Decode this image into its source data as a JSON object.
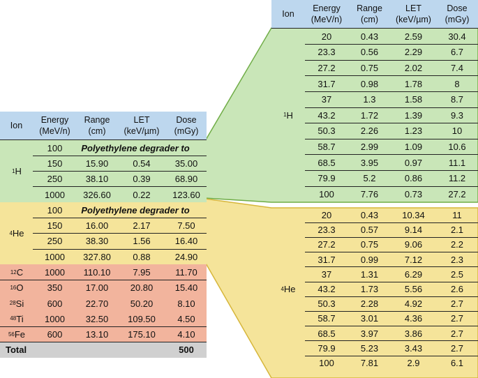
{
  "colors": {
    "header_blue": "#bdd7ee",
    "proton_green": "#c9e6b8",
    "helium_yellow": "#f5e49a",
    "heavy_salmon": "#f2b49d",
    "total_gray": "#d0d0d0",
    "green_outline": "#70ad47",
    "yellow_outline": "#d6b63a"
  },
  "left_table": {
    "headers": [
      {
        "l1": "Ion",
        "l2": ""
      },
      {
        "l1": "Energy",
        "l2": "(MeV/n)"
      },
      {
        "l1": "Range",
        "l2": "(cm)"
      },
      {
        "l1": "LET",
        "l2": "(keV/µm)"
      },
      {
        "l1": "Dose",
        "l2": "(mGy)"
      }
    ],
    "groups": [
      {
        "mass": "1",
        "symbol": "H",
        "color": "proton_green",
        "rows": [
          {
            "energy": "100",
            "note": "Polyethylene degrader to"
          },
          {
            "energy": "150",
            "range": "15.90",
            "let": "0.54",
            "dose": "35.00"
          },
          {
            "energy": "250",
            "range": "38.10",
            "let": "0.39",
            "dose": "68.90"
          },
          {
            "energy": "1000",
            "range": "326.60",
            "let": "0.22",
            "dose": "123.60"
          }
        ]
      },
      {
        "mass": "4",
        "symbol": "He",
        "color": "helium_yellow",
        "rows": [
          {
            "energy": "100",
            "note": "Polyethylene degrader to"
          },
          {
            "energy": "150",
            "range": "16.00",
            "let": "2.17",
            "dose": "7.50"
          },
          {
            "energy": "250",
            "range": "38.30",
            "let": "1.56",
            "dose": "16.40"
          },
          {
            "energy": "1000",
            "range": "327.80",
            "let": "0.88",
            "dose": "24.90"
          }
        ]
      },
      {
        "mass": "12",
        "symbol": "C",
        "color": "heavy_salmon",
        "rows": [
          {
            "energy": "1000",
            "range": "110.10",
            "let": "7.95",
            "dose": "11.70"
          }
        ]
      },
      {
        "mass": "16",
        "symbol": "O",
        "color": "heavy_salmon",
        "rows": [
          {
            "energy": "350",
            "range": "17.00",
            "let": "20.80",
            "dose": "15.40"
          }
        ]
      },
      {
        "mass": "28",
        "symbol": "Si",
        "color": "heavy_salmon",
        "rows": [
          {
            "energy": "600",
            "range": "22.70",
            "let": "50.20",
            "dose": "8.10"
          }
        ]
      },
      {
        "mass": "48",
        "symbol": "Ti",
        "color": "heavy_salmon",
        "rows": [
          {
            "energy": "1000",
            "range": "32.50",
            "let": "109.50",
            "dose": "4.50"
          }
        ]
      },
      {
        "mass": "56",
        "symbol": "Fe",
        "color": "heavy_salmon",
        "rows": [
          {
            "energy": "600",
            "range": "13.10",
            "let": "175.10",
            "dose": "4.10"
          }
        ]
      }
    ],
    "total": {
      "label": "Total",
      "dose": "500"
    }
  },
  "proton_table": {
    "headers": [
      {
        "l1": "Ion",
        "l2": ""
      },
      {
        "l1": "Energy",
        "l2": "(MeV/n)"
      },
      {
        "l1": "Range",
        "l2": "(cm)"
      },
      {
        "l1": "LET",
        "l2": "(keV/µm)"
      },
      {
        "l1": "Dose",
        "l2": "(mGy)"
      }
    ],
    "mass": "1",
    "symbol": "H",
    "rows": [
      [
        "20",
        "0.43",
        "2.59",
        "30.4"
      ],
      [
        "23.3",
        "0.56",
        "2.29",
        "6.7"
      ],
      [
        "27.2",
        "0.75",
        "2.02",
        "7.4"
      ],
      [
        "31.7",
        "0.98",
        "1.78",
        "8"
      ],
      [
        "37",
        "1.3",
        "1.58",
        "8.7"
      ],
      [
        "43.2",
        "1.72",
        "1.39",
        "9.3"
      ],
      [
        "50.3",
        "2.26",
        "1.23",
        "10"
      ],
      [
        "58.7",
        "2.99",
        "1.09",
        "10.6"
      ],
      [
        "68.5",
        "3.95",
        "0.97",
        "11.1"
      ],
      [
        "79.9",
        "5.2",
        "0.86",
        "11.2"
      ],
      [
        "100",
        "7.76",
        "0.73",
        "27.2"
      ]
    ]
  },
  "helium_table": {
    "mass": "4",
    "symbol": "He",
    "rows": [
      [
        "20",
        "0.43",
        "10.34",
        "11"
      ],
      [
        "23.3",
        "0.57",
        "9.14",
        "2.1"
      ],
      [
        "27.2",
        "0.75",
        "9.06",
        "2.2"
      ],
      [
        "31.7",
        "0.99",
        "7.12",
        "2.3"
      ],
      [
        "37",
        "1.31",
        "6.29",
        "2.5"
      ],
      [
        "43.2",
        "1.73",
        "5.56",
        "2.6"
      ],
      [
        "50.3",
        "2.28",
        "4.92",
        "2.7"
      ],
      [
        "58.7",
        "3.01",
        "4.36",
        "2.7"
      ],
      [
        "68.5",
        "3.97",
        "3.86",
        "2.7"
      ],
      [
        "79.9",
        "5.23",
        "3.43",
        "2.7"
      ],
      [
        "100",
        "7.81",
        "2.9",
        "6.1"
      ]
    ]
  }
}
